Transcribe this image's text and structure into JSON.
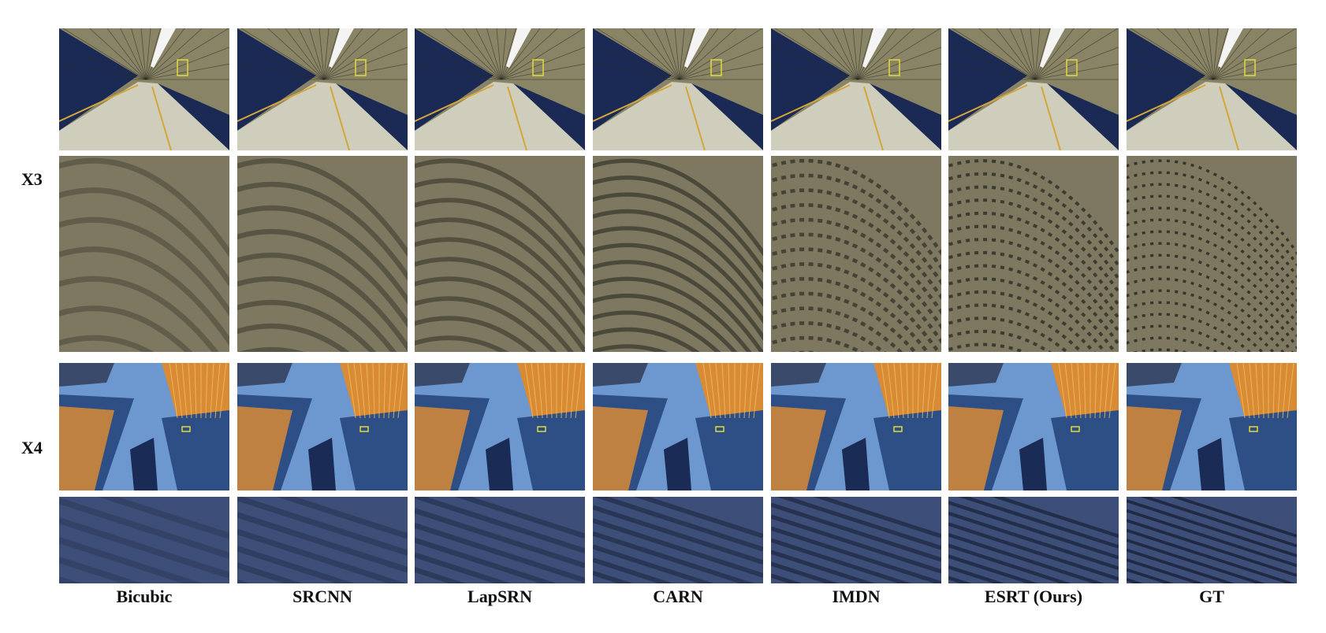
{
  "figure": {
    "rows": [
      {
        "scale_label": "X3"
      },
      {
        "scale_label": "X4"
      }
    ],
    "methods": [
      {
        "name": "Bicubic",
        "quality": 0
      },
      {
        "name": "SRCNN",
        "quality": 1
      },
      {
        "name": "LapSRN",
        "quality": 2
      },
      {
        "name": "CARN",
        "quality": 3
      },
      {
        "name": "IMDN",
        "quality": 4
      },
      {
        "name": "ESRT (Ours)",
        "quality": 5
      },
      {
        "name": "GT",
        "quality": 6
      }
    ],
    "colors": {
      "tunnel_ceiling": "#8a8466",
      "tunnel_dark": "#1b2a55",
      "floor": "#cfcdbb",
      "stripe": "#d4a63a",
      "sky": "#6d97cf",
      "building_blue": "#2d4f86",
      "building_orange": "#d98a35",
      "zoom_box": "#e3d83a"
    }
  }
}
